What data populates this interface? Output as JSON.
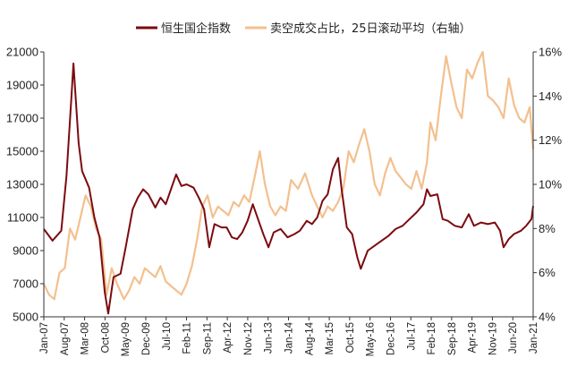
{
  "chart_data": {
    "type": "line",
    "legend": [
      {
        "name": "恒生国企指数",
        "color": "#7b0b10",
        "axis": "left"
      },
      {
        "name": "卖空成交占比，25日滚动平均（右轴）",
        "color": "#f3c08f",
        "axis": "right"
      }
    ],
    "legend_position": "top-center",
    "grid": false,
    "x_categories": [
      "Jan-07",
      "Aug-07",
      "Mar-08",
      "Oct-08",
      "May-09",
      "Dec-09",
      "Jul-10",
      "Feb-11",
      "Sep-11",
      "Apr-12",
      "Nov-12",
      "Jun-13",
      "Jan-14",
      "Aug-14",
      "Mar-15",
      "Oct-15",
      "May-16",
      "Dec-16",
      "Jul-17",
      "Feb-18",
      "Sep-18",
      "Apr-19",
      "Nov-19",
      "Jun-20",
      "Jan-21"
    ],
    "y_left": {
      "ticks": [
        "5000",
        "7000",
        "9000",
        "11000",
        "13000",
        "15000",
        "17000",
        "19000",
        "21000"
      ],
      "range": [
        5000,
        21000
      ]
    },
    "y_right": {
      "ticks": [
        "4%",
        "6%",
        "8%",
        "10%",
        "12%",
        "14%",
        "16%"
      ],
      "range": [
        4,
        16
      ]
    },
    "series": [
      {
        "name": "恒生国企指数",
        "axis": "left",
        "color": "#7b0b10",
        "x": [
          2007.0,
          2007.25,
          2007.5,
          2007.65,
          2007.8,
          2007.85,
          2008.0,
          2008.1,
          2008.3,
          2008.45,
          2008.6,
          2008.75,
          2008.85,
          2009.0,
          2009.2,
          2009.35,
          2009.55,
          2009.7,
          2009.85,
          2010.0,
          2010.2,
          2010.35,
          2010.5,
          2010.65,
          2010.8,
          2010.95,
          2011.1,
          2011.3,
          2011.45,
          2011.6,
          2011.75,
          2011.9,
          2012.1,
          2012.25,
          2012.4,
          2012.55,
          2012.7,
          2012.85,
          2013.0,
          2013.1,
          2013.3,
          2013.45,
          2013.6,
          2013.8,
          2014.0,
          2014.2,
          2014.35,
          2014.55,
          2014.7,
          2014.85,
          2015.0,
          2015.15,
          2015.3,
          2015.45,
          2015.55,
          2015.7,
          2015.85,
          2016.0,
          2016.1,
          2016.3,
          2016.5,
          2016.7,
          2016.9,
          2017.1,
          2017.3,
          2017.5,
          2017.7,
          2017.9,
          2018.0,
          2018.1,
          2018.3,
          2018.45,
          2018.6,
          2018.8,
          2019.0,
          2019.2,
          2019.35,
          2019.55,
          2019.75,
          2019.95,
          2020.1,
          2020.2,
          2020.35,
          2020.5,
          2020.7,
          2020.85,
          2021.0,
          2021.05
        ],
        "y": [
          10300,
          9600,
          10200,
          13500,
          18500,
          20300,
          15500,
          13800,
          12800,
          11000,
          9800,
          6500,
          5200,
          7400,
          7600,
          9200,
          11500,
          12200,
          12700,
          12400,
          11600,
          12200,
          11800,
          12700,
          13600,
          12900,
          13000,
          12800,
          12200,
          11500,
          9200,
          10600,
          10400,
          10400,
          9800,
          9700,
          10100,
          10800,
          11800,
          11200,
          10000,
          9200,
          10100,
          10300,
          9800,
          10000,
          10200,
          10800,
          10600,
          11000,
          12000,
          12400,
          13900,
          14600,
          12700,
          10400,
          10000,
          8600,
          7900,
          9000,
          9300,
          9600,
          9900,
          10300,
          10500,
          10900,
          11300,
          11800,
          12700,
          12300,
          12400,
          10900,
          10800,
          10500,
          10400,
          11200,
          10500,
          10700,
          10600,
          10700,
          10200,
          9200,
          9700,
          10000,
          10200,
          10500,
          10900,
          11700
        ]
      },
      {
        "name": "卖空成交占比，25日滚动平均（右轴）",
        "axis": "right",
        "color": "#f3c08f",
        "x": [
          2007.0,
          2007.15,
          2007.3,
          2007.45,
          2007.6,
          2007.75,
          2007.9,
          2008.05,
          2008.2,
          2008.35,
          2008.5,
          2008.65,
          2008.8,
          2008.95,
          2009.1,
          2009.3,
          2009.45,
          2009.6,
          2009.75,
          2009.9,
          2010.05,
          2010.2,
          2010.35,
          2010.5,
          2010.65,
          2010.8,
          2010.95,
          2011.1,
          2011.25,
          2011.4,
          2011.55,
          2011.7,
          2011.85,
          2012.0,
          2012.15,
          2012.3,
          2012.45,
          2012.6,
          2012.75,
          2012.9,
          2013.05,
          2013.2,
          2013.35,
          2013.5,
          2013.65,
          2013.8,
          2013.95,
          2014.1,
          2014.3,
          2014.5,
          2014.7,
          2014.85,
          2015.0,
          2015.15,
          2015.3,
          2015.45,
          2015.6,
          2015.75,
          2015.9,
          2016.05,
          2016.2,
          2016.35,
          2016.5,
          2016.65,
          2016.8,
          2016.95,
          2017.1,
          2017.25,
          2017.4,
          2017.55,
          2017.7,
          2017.85,
          2018.0,
          2018.1,
          2018.25,
          2018.4,
          2018.55,
          2018.7,
          2018.85,
          2019.0,
          2019.15,
          2019.3,
          2019.45,
          2019.6,
          2019.75,
          2019.9,
          2020.05,
          2020.2,
          2020.35,
          2020.5,
          2020.65,
          2020.8,
          2020.95,
          2021.05
        ],
        "y": [
          5.5,
          5.0,
          4.8,
          6.0,
          6.2,
          8.0,
          7.5,
          8.5,
          9.5,
          9.0,
          8.0,
          7.5,
          5.0,
          6.2,
          5.5,
          4.8,
          5.2,
          5.8,
          5.5,
          6.2,
          6.0,
          5.8,
          6.3,
          5.6,
          5.4,
          5.2,
          5.0,
          5.5,
          6.3,
          7.5,
          9.0,
          9.5,
          8.5,
          9.0,
          8.8,
          8.6,
          9.2,
          9.0,
          9.5,
          9.2,
          10.3,
          11.5,
          10.0,
          9.0,
          8.6,
          9.0,
          8.8,
          10.2,
          9.8,
          10.5,
          9.5,
          9.0,
          8.5,
          9.0,
          8.8,
          9.2,
          9.8,
          11.5,
          11.0,
          11.8,
          12.5,
          11.5,
          10.0,
          9.5,
          10.5,
          11.2,
          10.6,
          10.3,
          10.0,
          9.8,
          10.6,
          9.8,
          11.0,
          12.8,
          12.0,
          14.0,
          15.8,
          14.6,
          13.5,
          13.0,
          15.2,
          14.8,
          15.5,
          16.0,
          14.0,
          13.8,
          13.5,
          13.0,
          14.8,
          13.6,
          13.0,
          12.8,
          13.5,
          11.6
        ]
      }
    ]
  }
}
